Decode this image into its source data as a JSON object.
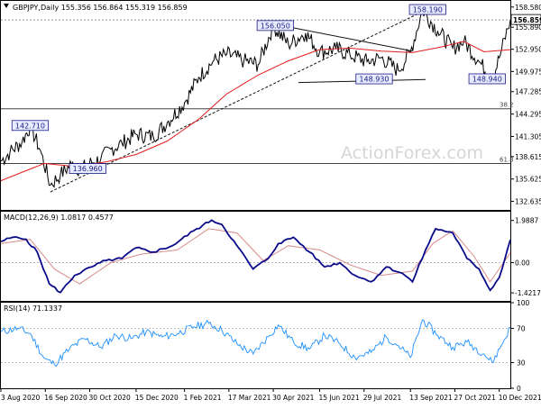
{
  "colors": {
    "price": "#000000",
    "ma": "#e11c1c",
    "trend": "#111111",
    "macd": "#0a0a8a",
    "signal": "#d98a8a",
    "rsi": "#1e90ff",
    "label_border": "#1a1a8a",
    "label_bg": "#e8ecff",
    "label_text": "#1a1a8a",
    "watermark": "#d6d6d6",
    "last_price_bg": "#ffffff"
  },
  "chart_data": [
    {
      "type": "line",
      "panel": "price",
      "title": "GBPJPY,Daily  155.356 156.864 155.319 156.859",
      "watermark": "ActionForex.com",
      "ylim": [
        131.5,
        159.4
      ],
      "yticks": [
        "158.580",
        "155.890",
        "152.950",
        "149.975",
        "147.285",
        "144.295",
        "141.305",
        "138.615",
        "135.625",
        "132.635"
      ],
      "ytick_values": [
        158.58,
        155.89,
        152.95,
        149.975,
        147.285,
        144.295,
        141.305,
        138.615,
        135.625,
        132.635
      ],
      "last_price": "156.859",
      "x_range": [
        "2020-08-03",
        "2021-12-21"
      ],
      "close_series": {
        "dates": [
          "2020-08-03",
          "2020-08-12",
          "2020-08-24",
          "2020-09-01",
          "2020-09-11",
          "2020-09-21",
          "2020-10-01",
          "2020-10-12",
          "2020-10-21",
          "2020-11-01",
          "2020-11-10",
          "2020-11-20",
          "2020-12-01",
          "2020-12-15",
          "2021-01-01",
          "2021-01-15",
          "2021-02-01",
          "2021-02-15",
          "2021-03-01",
          "2021-03-15",
          "2021-04-01",
          "2021-04-15",
          "2021-04-30",
          "2021-05-15",
          "2021-06-01",
          "2021-06-15",
          "2021-07-01",
          "2021-07-15",
          "2021-08-01",
          "2021-08-15",
          "2021-09-01",
          "2021-09-13",
          "2021-09-25",
          "2021-10-10",
          "2021-10-25",
          "2021-11-05",
          "2021-11-20",
          "2021-12-03",
          "2021-12-10",
          "2021-12-21"
        ],
        "values": [
          138.0,
          139.2,
          140.6,
          142.7,
          139.5,
          134.8,
          136.2,
          137.6,
          136.9,
          137.8,
          138.3,
          139.6,
          140.4,
          141.6,
          141.3,
          143.2,
          145.8,
          149.2,
          151.3,
          152.3,
          151.4,
          150.9,
          156.05,
          153.6,
          155.1,
          152.6,
          153.0,
          152.2,
          151.3,
          151.8,
          150.1,
          152.6,
          158.19,
          155.4,
          153.1,
          154.0,
          151.3,
          148.94,
          151.8,
          156.859
        ]
      },
      "ma_series": {
        "dates": [
          "2020-08-03",
          "2020-09-15",
          "2020-10-15",
          "2020-11-15",
          "2020-12-15",
          "2021-01-15",
          "2021-02-15",
          "2021-03-15",
          "2021-04-15",
          "2021-05-15",
          "2021-06-15",
          "2021-07-15",
          "2021-08-15",
          "2021-09-15",
          "2021-10-15",
          "2021-11-05",
          "2021-11-25",
          "2021-12-21"
        ],
        "values": [
          135.4,
          137.7,
          137.3,
          137.9,
          138.9,
          140.7,
          143.6,
          147.0,
          149.5,
          151.4,
          152.9,
          153.1,
          152.7,
          152.5,
          153.3,
          154.0,
          152.6,
          152.9
        ]
      },
      "horizontal_lines": [
        {
          "label": "38.2",
          "value": 145.0,
          "style": "solid"
        },
        {
          "label": "61.8",
          "value": 137.7,
          "style": "solid"
        },
        {
          "value": 156.859,
          "style": "dotted"
        }
      ],
      "trendlines": [
        {
          "from": [
            "2020-09-21",
            133.9
          ],
          "to": [
            "2021-09-30",
            158.3
          ],
          "style": "dashed"
        },
        {
          "from": [
            "2021-05-05",
            156.2
          ],
          "to": [
            "2021-09-15",
            152.7
          ],
          "style": "solid"
        },
        {
          "from": [
            "2021-05-25",
            148.5
          ],
          "to": [
            "2021-09-28",
            148.9
          ],
          "style": "solid"
        }
      ],
      "annotations": [
        {
          "text": "158.190",
          "date": "2021-09-30",
          "value": 158.19
        },
        {
          "text": "156.050",
          "date": "2021-05-02",
          "value": 156.05
        },
        {
          "text": "148.930",
          "date": "2021-08-08",
          "value": 148.93
        },
        {
          "text": "148.940",
          "date": "2021-11-28",
          "value": 148.94
        },
        {
          "text": "142.710",
          "date": "2020-09-01",
          "value": 142.71
        },
        {
          "text": "136.960",
          "date": "2020-10-28",
          "value": 136.96
        }
      ]
    },
    {
      "type": "line",
      "panel": "macd",
      "title": "MACD(12,26,9) 1.0817 0.4577",
      "ylim": [
        -1.8,
        2.4
      ],
      "yticks": [
        "1.9887",
        "0.00",
        "-1.4217"
      ],
      "ytick_values": [
        1.9887,
        0.0,
        -1.4217
      ],
      "series": [
        {
          "name": "MACD",
          "dates": [
            "2020-08-03",
            "2020-08-15",
            "2020-08-28",
            "2020-09-08",
            "2020-09-20",
            "2020-10-01",
            "2020-10-15",
            "2020-11-01",
            "2020-11-15",
            "2020-12-01",
            "2020-12-15",
            "2021-01-01",
            "2021-01-20",
            "2021-02-10",
            "2021-02-28",
            "2021-03-10",
            "2021-03-25",
            "2021-04-10",
            "2021-04-25",
            "2021-05-05",
            "2021-05-20",
            "2021-06-05",
            "2021-06-20",
            "2021-07-05",
            "2021-07-20",
            "2021-08-05",
            "2021-08-20",
            "2021-09-05",
            "2021-09-15",
            "2021-09-28",
            "2021-10-08",
            "2021-10-25",
            "2021-11-08",
            "2021-11-20",
            "2021-12-01",
            "2021-12-10",
            "2021-12-21"
          ],
          "values": [
            1.0,
            1.2,
            1.1,
            0.5,
            -1.0,
            -1.4,
            -0.6,
            -0.2,
            0.1,
            0.2,
            0.7,
            0.5,
            0.8,
            1.5,
            2.0,
            1.8,
            0.8,
            -0.3,
            0.2,
            0.9,
            1.2,
            0.5,
            -0.2,
            0.0,
            -0.6,
            -0.9,
            -0.2,
            -0.5,
            -0.9,
            0.6,
            1.6,
            1.4,
            0.2,
            -0.3,
            -1.3,
            -0.7,
            1.08
          ]
        },
        {
          "name": "Signal",
          "dates": [
            "2020-08-03",
            "2020-09-01",
            "2020-09-25",
            "2020-10-20",
            "2020-11-20",
            "2020-12-20",
            "2021-01-25",
            "2021-02-25",
            "2021-03-25",
            "2021-04-20",
            "2021-05-15",
            "2021-06-15",
            "2021-07-15",
            "2021-08-15",
            "2021-09-15",
            "2021-10-05",
            "2021-10-25",
            "2021-11-15",
            "2021-12-01",
            "2021-12-21"
          ],
          "values": [
            0.9,
            1.1,
            -0.3,
            -1.0,
            0.0,
            0.4,
            0.6,
            1.6,
            1.4,
            0.1,
            0.8,
            0.6,
            -0.1,
            -0.6,
            -0.4,
            0.9,
            1.5,
            0.3,
            -0.9,
            0.46
          ]
        }
      ]
    },
    {
      "type": "line",
      "panel": "rsi",
      "title": "RSI(14) 71.1337",
      "ylim": [
        0,
        100
      ],
      "yticks": [
        "100",
        "70",
        "30",
        "0"
      ],
      "ytick_values": [
        100,
        70,
        30,
        0
      ],
      "levels": [
        70,
        30
      ],
      "series": [
        {
          "name": "RSI(14)",
          "dates": [
            "2020-08-03",
            "2020-08-20",
            "2020-09-01",
            "2020-09-15",
            "2020-09-25",
            "2020-10-10",
            "2020-10-25",
            "2020-11-10",
            "2020-11-25",
            "2020-12-10",
            "2020-12-25",
            "2021-01-10",
            "2021-01-25",
            "2021-02-10",
            "2021-02-25",
            "2021-03-10",
            "2021-03-25",
            "2021-04-10",
            "2021-04-25",
            "2021-05-05",
            "2021-05-20",
            "2021-06-05",
            "2021-06-20",
            "2021-07-05",
            "2021-07-20",
            "2021-08-05",
            "2021-08-20",
            "2021-09-01",
            "2021-09-13",
            "2021-09-25",
            "2021-10-10",
            "2021-10-25",
            "2021-11-08",
            "2021-11-25",
            "2021-12-03",
            "2021-12-12",
            "2021-12-21"
          ],
          "values": [
            66,
            70,
            64,
            35,
            28,
            46,
            58,
            48,
            62,
            58,
            66,
            60,
            64,
            72,
            76,
            68,
            52,
            40,
            60,
            74,
            54,
            46,
            62,
            52,
            36,
            42,
            60,
            50,
            36,
            80,
            62,
            48,
            54,
            40,
            30,
            50,
            71.13
          ]
        }
      ]
    },
    {
      "type": "axis",
      "panel": "time",
      "x_ticks": [
        "3 Aug 2020",
        "16 Sep 2020",
        "30 Oct 2020",
        "15 Dec 2020",
        "1 Feb 2021",
        "17 Mar 2021",
        "30 Apr 2021",
        "15 Jun 2021",
        "29 Jul 2021",
        "13 Sep 2021",
        "27 Oct 2021",
        "10 Dec 2021"
      ],
      "x_tick_dates": [
        "2020-08-03",
        "2020-09-16",
        "2020-10-30",
        "2020-12-15",
        "2021-02-01",
        "2021-03-17",
        "2021-04-30",
        "2021-06-15",
        "2021-07-29",
        "2021-09-13",
        "2021-10-27",
        "2021-12-10"
      ]
    }
  ]
}
